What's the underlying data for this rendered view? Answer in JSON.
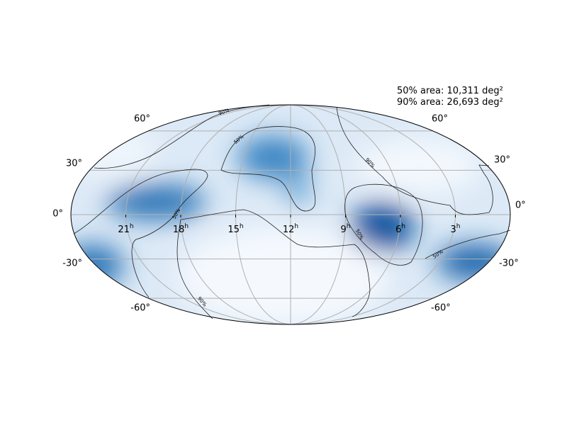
{
  "map": {
    "area_labels": [
      "50% area: 10,311 deg²",
      "90% area: 26,693 deg²"
    ],
    "lat_ticks": [
      {
        "value": 60,
        "label": "60°"
      },
      {
        "value": 30,
        "label": "30°"
      },
      {
        "value": 0,
        "label": "0°"
      },
      {
        "value": -30,
        "label": "-30°"
      },
      {
        "value": -60,
        "label": "-60°"
      }
    ],
    "ra_ticks": [
      {
        "value": 21,
        "label": "21",
        "unit": "h"
      },
      {
        "value": 18,
        "label": "18",
        "unit": "h"
      },
      {
        "value": 15,
        "label": "15",
        "unit": "h"
      },
      {
        "value": 12,
        "label": "12",
        "unit": "h"
      },
      {
        "value": 9,
        "label": "9",
        "unit": "h"
      },
      {
        "value": 6,
        "label": "6",
        "unit": "h"
      },
      {
        "value": 3,
        "label": "3",
        "unit": "h"
      }
    ],
    "contour_labels": [
      "90%",
      "50%",
      "90%",
      "50%",
      "50%",
      "50%",
      "90%"
    ]
  }
}
